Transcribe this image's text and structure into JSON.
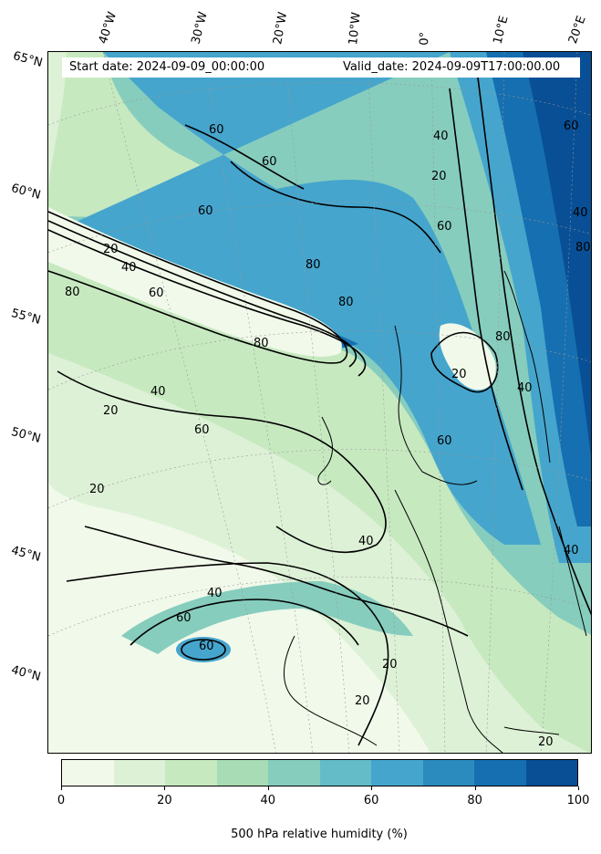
{
  "header": {
    "start_date": "Start date: 2024-09-09_00:00:00",
    "valid_date": "Valid_date: 2024-09-09T17:00:00.00"
  },
  "longitude_labels": [
    "40°W",
    "30°W",
    "20°W",
    "10°W",
    "0°",
    "10°E",
    "20°E"
  ],
  "latitude_labels": [
    "65°N",
    "60°N",
    "55°N",
    "50°N",
    "45°N",
    "40°N"
  ],
  "contour_labels": [
    "20",
    "40",
    "60",
    "80"
  ],
  "colorbar": {
    "label": "500 hPa relative humidity (%)",
    "ticks": [
      "0",
      "20",
      "40",
      "60",
      "80",
      "100"
    ],
    "colors": [
      "#f1f9ea",
      "#ddf1d6",
      "#c7e9c0",
      "#a8dcb4",
      "#86cdbe",
      "#64bcc9",
      "#45a5cd",
      "#2b8bbe",
      "#166fb0",
      "#084f96"
    ]
  }
}
